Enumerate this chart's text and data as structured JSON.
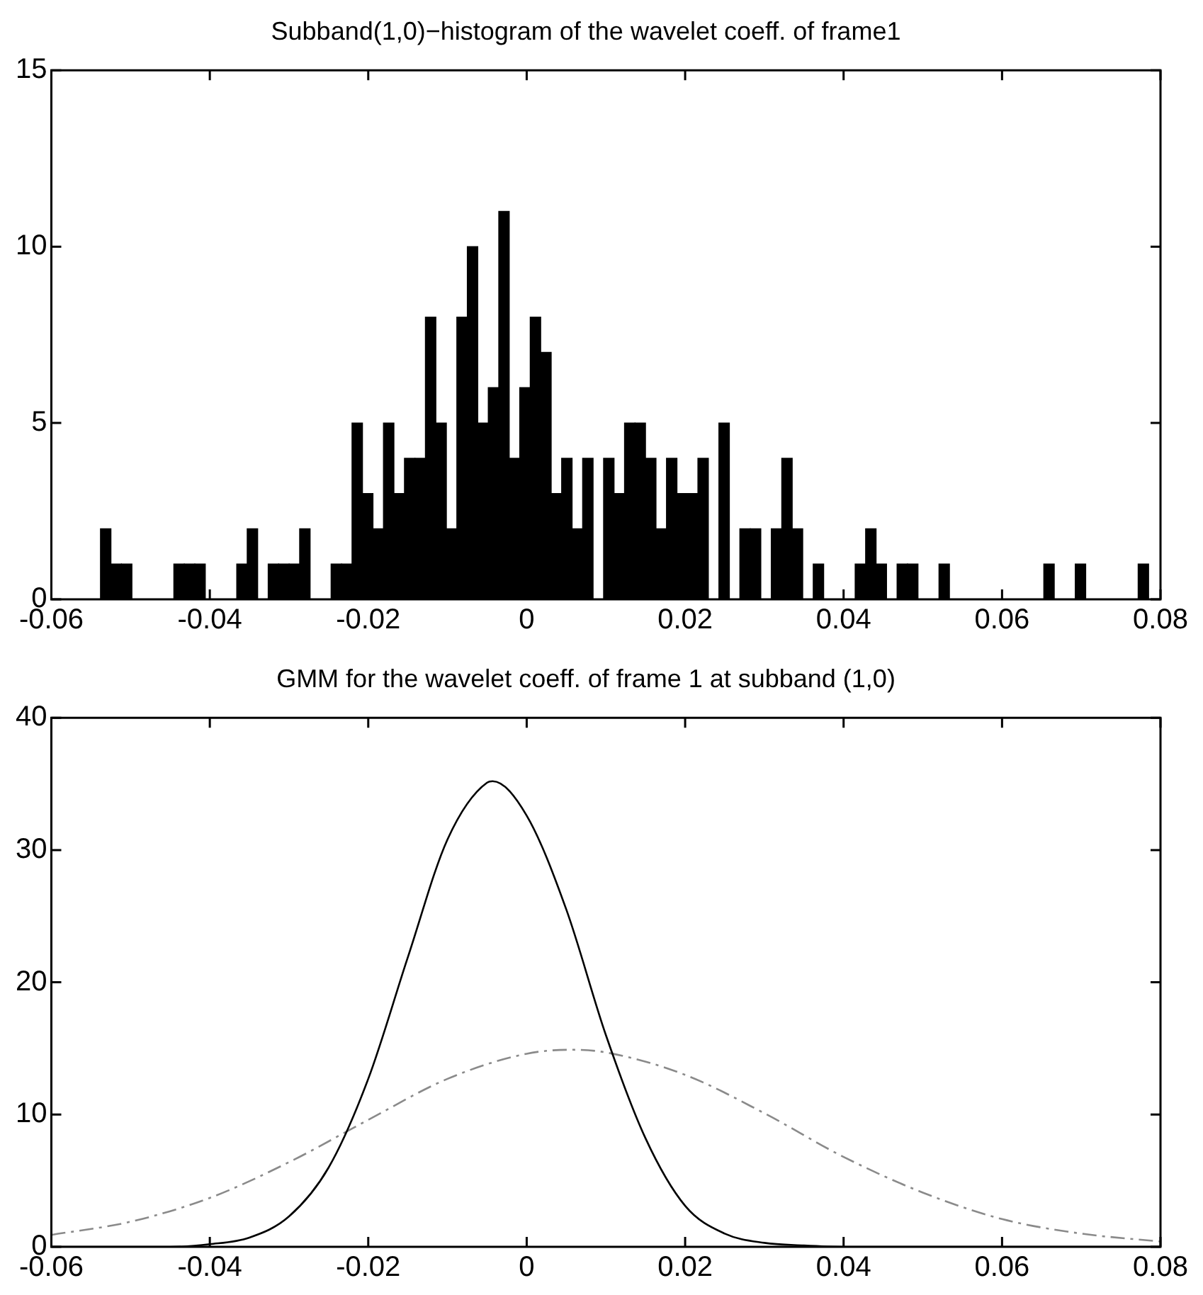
{
  "chart_data": [
    {
      "type": "histogram",
      "title": "Subband(1,0)−histogram of the wavelet coeff. of frame1",
      "color": "#000000",
      "bins": [
        -0.0538,
        -0.05248,
        -0.05115,
        -0.04983,
        -0.04851,
        -0.04719,
        -0.04586,
        -0.04454,
        -0.04322,
        -0.04189,
        -0.04057,
        -0.03925,
        -0.03792,
        -0.0366,
        -0.03528,
        -0.03396,
        -0.03263,
        -0.03131,
        -0.02999,
        -0.02866,
        -0.02734,
        -0.02602,
        -0.02469,
        -0.02337,
        -0.02205,
        -0.02073,
        -0.0194,
        -0.01808,
        -0.01676,
        -0.01543,
        -0.01411,
        -0.01279,
        -0.01146,
        -0.01014,
        -0.00882,
        -0.0075,
        -0.00617,
        -0.00485,
        -0.00353,
        -0.0022,
        -0.00088,
        0.00044,
        0.00177,
        0.00309,
        0.00441,
        0.00573,
        0.00706,
        0.00838,
        0.0097,
        0.01103,
        0.01235,
        0.01367,
        0.015,
        0.01632,
        0.01764,
        0.01897,
        0.02029,
        0.02161,
        0.02293,
        0.02426,
        0.02558,
        0.0269,
        0.02823,
        0.02955,
        0.03087,
        0.03219,
        0.03352,
        0.03484,
        0.03616,
        0.03749,
        0.03881,
        0.04013,
        0.04146,
        0.04278,
        0.0441,
        0.04542,
        0.04675,
        0.04807,
        0.04939,
        0.05072,
        0.05204,
        0.05336,
        0.05469,
        0.05601,
        0.05733,
        0.05866,
        0.05998,
        0.0613,
        0.06262,
        0.06395,
        0.06527,
        0.06659,
        0.06792,
        0.06924,
        0.07056,
        0.07189,
        0.07321,
        0.07453,
        0.07585,
        0.07718,
        0.0785
      ],
      "values": [
        2,
        1,
        1,
        0,
        0,
        0,
        0,
        1,
        1,
        1,
        0,
        0,
        0,
        1,
        2,
        0,
        1,
        1,
        1,
        2,
        0,
        0,
        1,
        1,
        5,
        3,
        2,
        5,
        3,
        4,
        4,
        8,
        5,
        2,
        8,
        10,
        5,
        6,
        11,
        4,
        6,
        8,
        7,
        3,
        4,
        2,
        4,
        0,
        4,
        3,
        5,
        5,
        4,
        2,
        4,
        3,
        3,
        4,
        0,
        5,
        0,
        2,
        2,
        0,
        2,
        4,
        2,
        0,
        1,
        0,
        0,
        0,
        1,
        2,
        1,
        0,
        1,
        1,
        0,
        0,
        1,
        0,
        0,
        0,
        0,
        0,
        0,
        0,
        0,
        0,
        1,
        0,
        0,
        1,
        0,
        0,
        0,
        0,
        0,
        1
      ],
      "xlim": [
        -0.06,
        0.08
      ],
      "xticks": [
        -0.06,
        -0.04,
        -0.02,
        0,
        0.02,
        0.04,
        0.06,
        0.08
      ],
      "ylim": [
        0,
        15
      ],
      "yticks": [
        0,
        5,
        10,
        15
      ],
      "grid": false,
      "legend": false
    },
    {
      "type": "line",
      "title": "GMM for the wavelet coeff. of frame 1 at subband (1,0)",
      "marker": "none",
      "grid": false,
      "legend": false,
      "series": [
        {
          "color": "#000000",
          "line_style": "solid",
          "x": [
            -0.06,
            -0.05,
            -0.045,
            -0.04,
            -0.035,
            -0.03,
            -0.025,
            -0.02,
            -0.015,
            -0.01,
            -0.005,
            -0.0043,
            0,
            0.005,
            0.01,
            0.015,
            0.02,
            0.025,
            0.03,
            0.035,
            0.04,
            0.05,
            0.06,
            0.07,
            0.08
          ],
          "values": [
            0,
            0,
            0,
            0.2,
            0.7,
            2.3,
            6.0,
            12.7,
            21.9,
            30.8,
            35.1,
            35.2,
            32.6,
            25.5,
            16.0,
            8.2,
            3.1,
            1.0,
            0.3,
            0.1,
            0,
            0,
            0,
            0,
            0
          ]
        },
        {
          "color": "#8a8a8a",
          "line_style": "dashed",
          "x": [
            -0.06,
            -0.05,
            -0.04,
            -0.03,
            -0.02,
            -0.01,
            0,
            0.0057,
            0.01,
            0.02,
            0.03,
            0.04,
            0.05,
            0.06,
            0.07,
            0.08
          ],
          "values": [
            0.9,
            1.9,
            3.7,
            6.4,
            9.6,
            12.7,
            14.6,
            14.9,
            14.7,
            13.0,
            10.1,
            6.8,
            4.1,
            2.1,
            1.0,
            0.4
          ]
        }
      ],
      "xlim": [
        -0.06,
        0.08
      ],
      "xticks": [
        -0.06,
        -0.04,
        -0.02,
        0,
        0.02,
        0.04,
        0.06,
        0.08
      ],
      "ylim": [
        0,
        40
      ],
      "yticks": [
        0,
        10,
        20,
        30,
        40
      ]
    }
  ]
}
